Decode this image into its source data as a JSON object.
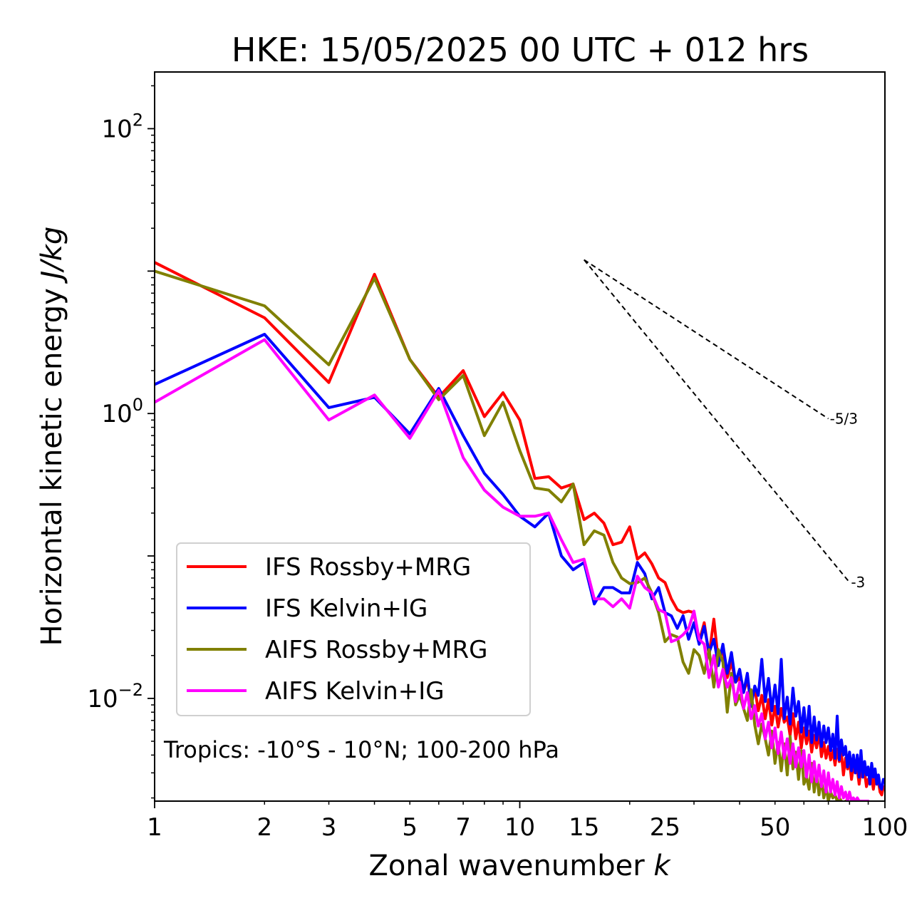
{
  "chart_data": {
    "type": "line",
    "title": "HKE: 15/05/2025 00 UTC + 012 hrs",
    "xlabel": "Zonal wavenumber",
    "xlabel_var": "k",
    "ylabel": "Horizontal kinetic energy",
    "ylabel_unit": "J/kg",
    "xscale": "log",
    "yscale": "log",
    "xlim": [
      1,
      100
    ],
    "ylim": [
      0.0019,
      250
    ],
    "xticks": [
      1,
      2,
      3,
      5,
      7,
      10,
      15,
      25,
      50,
      100
    ],
    "xtick_labels": [
      "1",
      "2",
      "3",
      "5",
      "7",
      "10",
      "15",
      "25",
      "50",
      "100"
    ],
    "yticks": [
      {
        "value": 100,
        "base": "10",
        "exp": "2"
      },
      {
        "value": 1,
        "base": "10",
        "exp": "0"
      },
      {
        "value": 0.01,
        "base": "10",
        "exp": "−2"
      }
    ],
    "grid": false,
    "legend_position": "lower-left",
    "annotation": "Tropics: -10°S - 10°N; 100-200 hPa",
    "slope_lines": [
      {
        "label": "-5/3",
        "x": [
          15,
          70
        ],
        "y": [
          12,
          0.92
        ]
      },
      {
        "label": "-3",
        "x": [
          15,
          80
        ],
        "y": [
          12,
          0.0652
        ]
      }
    ],
    "series": [
      {
        "name": "IFS Rossby+MRG",
        "color": "#ff0000",
        "x": [
          1,
          2,
          3,
          4,
          5,
          6,
          7,
          8,
          9,
          10,
          11,
          12,
          13,
          14,
          15,
          16,
          17,
          18,
          19,
          20,
          21,
          22,
          23,
          24,
          25,
          26,
          27,
          28,
          29,
          30,
          31,
          32,
          33,
          34,
          35,
          36,
          37,
          38,
          39,
          40,
          41,
          42,
          43,
          44,
          45,
          46,
          47,
          48,
          49,
          50,
          51,
          52,
          53,
          54,
          55,
          56,
          57,
          58,
          59,
          60,
          61,
          62,
          63,
          64,
          65,
          66,
          67,
          68,
          69,
          70,
          71,
          72,
          73,
          74,
          75,
          76,
          77,
          78,
          79,
          80,
          81,
          82,
          83,
          84,
          85,
          86,
          87,
          88,
          89,
          90,
          91,
          92,
          93,
          94,
          95,
          96,
          97,
          98,
          99,
          100
        ],
        "y": [
          11.5,
          4.7,
          1.65,
          9.5,
          2.4,
          1.3,
          2.0,
          0.95,
          1.4,
          0.9,
          0.35,
          0.36,
          0.3,
          0.32,
          0.18,
          0.2,
          0.17,
          0.12,
          0.125,
          0.16,
          0.095,
          0.105,
          0.088,
          0.07,
          0.065,
          0.05,
          0.042,
          0.04,
          0.041,
          0.04,
          0.025,
          0.034,
          0.02,
          0.036,
          0.018,
          0.022,
          0.014,
          0.018,
          0.013,
          0.014,
          0.011,
          0.0135,
          0.0095,
          0.0118,
          0.0082,
          0.0105,
          0.0072,
          0.0098,
          0.0065,
          0.0088,
          0.0063,
          0.0085,
          0.0068,
          0.0074,
          0.0055,
          0.0078,
          0.0052,
          0.0068,
          0.0045,
          0.0062,
          0.0048,
          0.0059,
          0.0042,
          0.0055,
          0.0045,
          0.0058,
          0.0039,
          0.0049,
          0.0038,
          0.0046,
          0.0037,
          0.0043,
          0.0034,
          0.0044,
          0.0036,
          0.0041,
          0.0029,
          0.0038,
          0.0032,
          0.0036,
          0.0027,
          0.0034,
          0.003,
          0.0032,
          0.0025,
          0.0032,
          0.0028,
          0.003,
          0.0024,
          0.0027,
          0.0026,
          0.0028,
          0.0023,
          0.0028,
          0.0025,
          0.0026,
          0.0022,
          0.0021,
          0.0024,
          0.0023
        ]
      },
      {
        "name": "IFS Kelvin+IG",
        "color": "#0000ff",
        "x": [
          1,
          2,
          3,
          4,
          5,
          6,
          7,
          8,
          9,
          10,
          11,
          12,
          13,
          14,
          15,
          16,
          17,
          18,
          19,
          20,
          21,
          22,
          23,
          24,
          25,
          26,
          27,
          28,
          29,
          30,
          31,
          32,
          33,
          34,
          35,
          36,
          37,
          38,
          39,
          40,
          41,
          42,
          43,
          44,
          45,
          46,
          47,
          48,
          49,
          50,
          51,
          52,
          53,
          54,
          55,
          56,
          57,
          58,
          59,
          60,
          61,
          62,
          63,
          64,
          65,
          66,
          67,
          68,
          69,
          70,
          71,
          72,
          73,
          74,
          75,
          76,
          77,
          78,
          79,
          80,
          81,
          82,
          83,
          84,
          85,
          86,
          87,
          88,
          89,
          90,
          91,
          92,
          93,
          94,
          95,
          96,
          97,
          98,
          99,
          100
        ],
        "y": [
          1.6,
          3.6,
          1.1,
          1.3,
          0.72,
          1.5,
          0.7,
          0.38,
          0.27,
          0.19,
          0.16,
          0.2,
          0.1,
          0.08,
          0.09,
          0.046,
          0.06,
          0.06,
          0.055,
          0.055,
          0.09,
          0.075,
          0.05,
          0.06,
          0.04,
          0.038,
          0.031,
          0.038,
          0.026,
          0.034,
          0.024,
          0.032,
          0.021,
          0.026,
          0.017,
          0.024,
          0.015,
          0.021,
          0.013,
          0.016,
          0.011,
          0.015,
          0.0088,
          0.0122,
          0.0105,
          0.0188,
          0.0095,
          0.0138,
          0.0082,
          0.0124,
          0.0078,
          0.0188,
          0.0072,
          0.0102,
          0.0066,
          0.0118,
          0.0075,
          0.0095,
          0.0058,
          0.0086,
          0.0055,
          0.0088,
          0.0049,
          0.0074,
          0.0051,
          0.0068,
          0.0046,
          0.0064,
          0.0049,
          0.0062,
          0.0043,
          0.0056,
          0.0038,
          0.0075,
          0.0037,
          0.0051,
          0.004,
          0.0046,
          0.0033,
          0.0042,
          0.0031,
          0.004,
          0.003,
          0.004,
          0.0028,
          0.0043,
          0.0028,
          0.0036,
          0.0029,
          0.0033,
          0.0025,
          0.0035,
          0.0028,
          0.0032,
          0.0025,
          0.0029,
          0.0024,
          0.0023,
          0.0027,
          0.0026
        ]
      },
      {
        "name": "AIFS Rossby+MRG",
        "color": "#808000",
        "x": [
          1,
          2,
          3,
          4,
          5,
          6,
          7,
          8,
          9,
          10,
          11,
          12,
          13,
          14,
          15,
          16,
          17,
          18,
          19,
          20,
          21,
          22,
          23,
          24,
          25,
          26,
          27,
          28,
          29,
          30,
          31,
          32,
          33,
          34,
          35,
          36,
          37,
          38,
          39,
          40,
          41,
          42,
          43,
          44,
          45,
          46,
          47,
          48,
          49,
          50,
          51,
          52,
          53,
          54,
          55,
          56,
          57,
          58,
          59,
          60,
          61,
          62,
          63,
          64,
          65,
          66,
          67,
          68,
          69,
          70,
          71,
          72,
          73,
          74,
          75,
          76,
          77,
          78,
          79,
          80,
          81,
          82,
          83,
          84,
          85,
          86,
          87,
          88,
          89,
          90
        ],
        "y": [
          10.0,
          5.7,
          2.2,
          8.9,
          2.4,
          1.25,
          1.85,
          0.7,
          1.2,
          0.55,
          0.3,
          0.29,
          0.24,
          0.32,
          0.12,
          0.15,
          0.14,
          0.09,
          0.07,
          0.064,
          0.065,
          0.07,
          0.055,
          0.04,
          0.025,
          0.028,
          0.027,
          0.018,
          0.015,
          0.022,
          0.02,
          0.015,
          0.022,
          0.012,
          0.022,
          0.018,
          0.008,
          0.015,
          0.009,
          0.0105,
          0.0085,
          0.007,
          0.0115,
          0.0065,
          0.0048,
          0.0066,
          0.0052,
          0.004,
          0.0059,
          0.0035,
          0.0049,
          0.0031,
          0.0048,
          0.0029,
          0.0054,
          0.0032,
          0.0042,
          0.0027,
          0.0043,
          0.0025,
          0.0028,
          0.0023,
          0.0035,
          0.0022,
          0.003,
          0.0021,
          0.0027,
          0.002,
          0.0024,
          0.0019,
          0.0022,
          0.002,
          0.0021,
          0.0019,
          0.002,
          0.0019,
          0.0018,
          0.0019,
          0.0019,
          0.0018,
          0.0018,
          0.0018,
          0.0018,
          0.0018,
          0.0018,
          0.0018,
          0.0018,
          0.0018,
          0.0018,
          0.0018
        ]
      },
      {
        "name": "AIFS Kelvin+IG",
        "color": "#ff00ff",
        "x": [
          1,
          2,
          3,
          4,
          5,
          6,
          7,
          8,
          9,
          10,
          11,
          12,
          13,
          14,
          15,
          16,
          17,
          18,
          19,
          20,
          21,
          22,
          23,
          24,
          25,
          26,
          27,
          28,
          29,
          30,
          31,
          32,
          33,
          34,
          35,
          36,
          37,
          38,
          39,
          40,
          41,
          42,
          43,
          44,
          45,
          46,
          47,
          48,
          49,
          50,
          51,
          52,
          53,
          54,
          55,
          56,
          57,
          58,
          59,
          60,
          61,
          62,
          63,
          64,
          65,
          66,
          67,
          68,
          69,
          70,
          71,
          72,
          73,
          74,
          75,
          76,
          77,
          78,
          79,
          80,
          81,
          82,
          83,
          84,
          85,
          86,
          87,
          88,
          89,
          90
        ],
        "y": [
          1.2,
          3.3,
          0.9,
          1.35,
          0.67,
          1.45,
          0.49,
          0.29,
          0.22,
          0.19,
          0.19,
          0.2,
          0.13,
          0.09,
          0.095,
          0.05,
          0.05,
          0.044,
          0.05,
          0.043,
          0.072,
          0.06,
          0.055,
          0.042,
          0.04,
          0.025,
          0.026,
          0.028,
          0.031,
          0.041,
          0.026,
          0.024,
          0.014,
          0.02,
          0.012,
          0.016,
          0.012,
          0.014,
          0.0095,
          0.013,
          0.0085,
          0.011,
          0.0072,
          0.0089,
          0.0064,
          0.0078,
          0.0052,
          0.0068,
          0.0045,
          0.0062,
          0.0041,
          0.0058,
          0.0038,
          0.0052,
          0.0035,
          0.0048,
          0.0033,
          0.0045,
          0.0033,
          0.0043,
          0.0028,
          0.004,
          0.0026,
          0.0036,
          0.0026,
          0.0034,
          0.0024,
          0.0031,
          0.0022,
          0.003,
          0.0022,
          0.0027,
          0.0021,
          0.0026,
          0.002,
          0.0024,
          0.002,
          0.0022,
          0.0019,
          0.0022,
          0.0019,
          0.002,
          0.0019,
          0.002,
          0.0019,
          0.0019,
          0.0019,
          0.0019,
          0.0019,
          0.0019
        ]
      }
    ]
  }
}
